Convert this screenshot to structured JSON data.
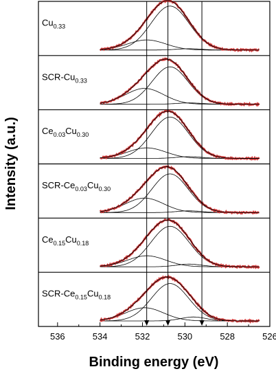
{
  "chart_data": {
    "type": "line",
    "title": "",
    "xlabel": "Binding energy (eV)",
    "ylabel": "Intensity (a.u.)",
    "xlim": [
      536.9,
      526.0
    ],
    "x_reversed": true,
    "x_ticks": [
      "536",
      "534",
      "532",
      "530",
      "528",
      "526"
    ],
    "reference_lines_eV": [
      531.8,
      530.8,
      529.2
    ],
    "colors": {
      "experimental": "#d43a3a",
      "fit": "#000000",
      "axis": "#000000"
    },
    "panels": [
      {
        "label_parts": [
          {
            "t": "Cu"
          },
          {
            "t": "0.33",
            "sub": true
          }
        ],
        "components": [
          {
            "center": 530.7,
            "amp": 1.0,
            "sigma": 0.9
          },
          {
            "center": 531.8,
            "amp": 0.23,
            "sigma": 0.9
          },
          {
            "center": 529.8,
            "amp": 0.03,
            "sigma": 0.6
          }
        ]
      },
      {
        "label_parts": [
          {
            "t": "SCR-Cu"
          },
          {
            "t": "0.33",
            "sub": true
          }
        ],
        "components": [
          {
            "center": 530.7,
            "amp": 0.85,
            "sigma": 0.85
          },
          {
            "center": 531.9,
            "amp": 0.36,
            "sigma": 0.9
          },
          {
            "center": 529.8,
            "amp": 0.03,
            "sigma": 0.6
          }
        ]
      },
      {
        "label_parts": [
          {
            "t": "Ce"
          },
          {
            "t": "0.03",
            "sub": true
          },
          {
            "t": "Cu"
          },
          {
            "t": "0.30",
            "sub": true
          }
        ],
        "components": [
          {
            "center": 530.7,
            "amp": 0.94,
            "sigma": 0.88
          },
          {
            "center": 531.8,
            "amp": 0.24,
            "sigma": 0.9
          },
          {
            "center": 529.8,
            "amp": 0.04,
            "sigma": 0.6
          }
        ]
      },
      {
        "label_parts": [
          {
            "t": "SCR-Ce"
          },
          {
            "t": "0.03",
            "sub": true
          },
          {
            "t": "Cu"
          },
          {
            "t": "0.30",
            "sub": true
          }
        ],
        "components": [
          {
            "center": 530.7,
            "amp": 0.88,
            "sigma": 0.86
          },
          {
            "center": 531.9,
            "amp": 0.33,
            "sigma": 0.9
          },
          {
            "center": 529.8,
            "amp": 0.04,
            "sigma": 0.6
          }
        ]
      },
      {
        "label_parts": [
          {
            "t": "Ce"
          },
          {
            "t": "0.15",
            "sub": true
          },
          {
            "t": "Cu"
          },
          {
            "t": "0.18",
            "sub": true
          }
        ],
        "components": [
          {
            "center": 530.7,
            "amp": 0.92,
            "sigma": 0.9
          },
          {
            "center": 531.8,
            "amp": 0.25,
            "sigma": 0.9
          },
          {
            "center": 529.8,
            "amp": 0.06,
            "sigma": 0.6
          }
        ]
      },
      {
        "label_parts": [
          {
            "t": "SCR-Ce"
          },
          {
            "t": "0.15",
            "sub": true
          },
          {
            "t": "Cu"
          },
          {
            "t": "0.18",
            "sub": true
          }
        ],
        "components": [
          {
            "center": 530.7,
            "amp": 0.85,
            "sigma": 0.88
          },
          {
            "center": 531.9,
            "amp": 0.3,
            "sigma": 0.9
          },
          {
            "center": 529.6,
            "amp": 0.09,
            "sigma": 0.6
          }
        ]
      }
    ]
  }
}
